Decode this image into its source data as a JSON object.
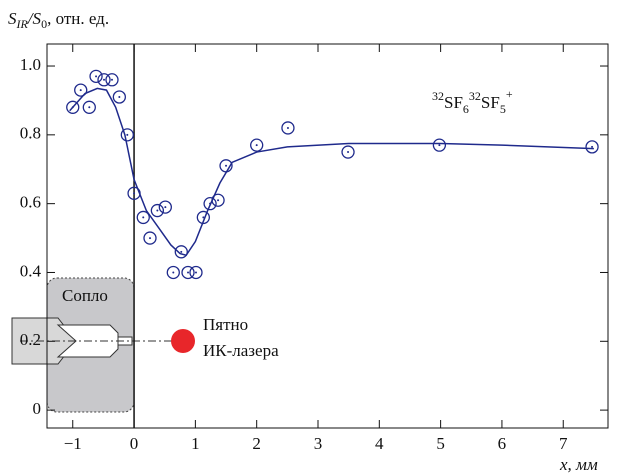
{
  "chart_data": {
    "type": "scatter",
    "ylabel": [
      "S",
      "IR",
      "/S",
      "0",
      ", отн. ед."
    ],
    "xlabel": "x, мм",
    "annotation": [
      "32",
      "SF",
      "6",
      "32",
      "SF",
      "5",
      "+"
    ],
    "nozzle_label": "Сопло",
    "laser_label": [
      "Пятно",
      "ИК-лазера"
    ],
    "color": "#1f2a8c",
    "series": [
      {
        "kind": "points",
        "x": [
          -1.0,
          -0.87,
          -0.73,
          -0.62,
          -0.49,
          -0.36,
          -0.24,
          -0.11,
          0.0,
          0.15,
          0.26,
          0.38,
          0.51,
          0.64,
          0.77,
          0.88,
          1.01,
          1.13,
          1.24,
          1.37,
          1.5,
          2.0,
          2.51,
          3.49,
          4.98,
          7.47
        ],
        "values": [
          0.88,
          0.93,
          0.88,
          0.97,
          0.96,
          0.96,
          0.91,
          0.8,
          0.63,
          0.56,
          0.5,
          0.58,
          0.59,
          0.4,
          0.46,
          0.4,
          0.4,
          0.56,
          0.6,
          0.61,
          0.71,
          0.77,
          0.82,
          0.75,
          0.77,
          0.765
        ]
      },
      {
        "kind": "line",
        "x": [
          -1.05,
          -0.8,
          -0.6,
          -0.45,
          -0.3,
          -0.15,
          0.0,
          0.2,
          0.4,
          0.6,
          0.75,
          0.85,
          1.0,
          1.2,
          1.4,
          1.6,
          2.0,
          2.5,
          3.5,
          5.0,
          6.0,
          7.5
        ],
        "values": [
          0.87,
          0.92,
          0.935,
          0.93,
          0.88,
          0.8,
          0.67,
          0.58,
          0.53,
          0.48,
          0.455,
          0.45,
          0.49,
          0.58,
          0.66,
          0.72,
          0.75,
          0.765,
          0.775,
          0.775,
          0.77,
          0.76
        ]
      }
    ],
    "xlim": [
      -1.42,
      7.73
    ],
    "ylim": [
      -0.052,
      1.064
    ],
    "xticks": [
      {
        "value": -1,
        "label": "−1"
      },
      0,
      1,
      2,
      3,
      4,
      5,
      6,
      7
    ],
    "yticks": [
      0,
      0.2,
      0.4,
      0.6,
      0.8,
      {
        "value": 1,
        "label": "1.0"
      }
    ]
  }
}
